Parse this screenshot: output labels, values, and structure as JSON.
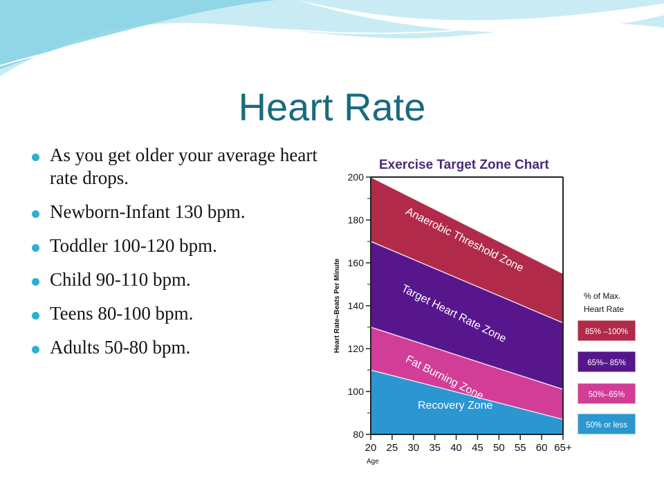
{
  "slide": {
    "title": "Heart Rate",
    "bullets": [
      "As you get older your average heart rate drops.",
      "Newborn-Infant 130 bpm.",
      "Toddler 100-120 bpm.",
      "Child 90-110 bpm.",
      "Teens 80-100 bpm.",
      "Adults 50-80 bpm."
    ],
    "colors": {
      "title": "#1a6a7e",
      "bullet": "#2bb0d0",
      "wave_light": "#c9ecf4",
      "wave_dark": "#7fcfe2"
    }
  },
  "chart_data": {
    "type": "area",
    "title": "Exercise Target Zone Chart",
    "xlabel": "Age",
    "ylabel": "Heart Rate–Beats Per Minute",
    "x": [
      20,
      65
    ],
    "x_tick_labels": [
      "20",
      "25",
      "30",
      "35",
      "40",
      "45",
      "50",
      "55",
      "60",
      "65+"
    ],
    "x_ticks": [
      20,
      25,
      30,
      35,
      40,
      45,
      50,
      55,
      60,
      65
    ],
    "y_ticks": [
      80,
      100,
      120,
      140,
      160,
      180,
      200
    ],
    "xlim": [
      20,
      65
    ],
    "ylim": [
      80,
      200
    ],
    "boundaries": [
      {
        "name": "Max",
        "values": [
          200,
          155
        ]
      },
      {
        "name": "85%",
        "values": [
          170,
          132
        ]
      },
      {
        "name": "65%",
        "values": [
          130,
          101
        ]
      },
      {
        "name": "50%",
        "values": [
          110,
          87
        ]
      }
    ],
    "series": [
      {
        "name": "Anaerobic Threshold Zone",
        "color": "#b12a4a",
        "upper": [
          200,
          155
        ],
        "lower": [
          170,
          132
        ]
      },
      {
        "name": "Target Heart Rate Zone",
        "color": "#57168c",
        "upper": [
          170,
          132
        ],
        "lower": [
          130,
          101
        ]
      },
      {
        "name": "Fat Burning Zone",
        "color": "#d13d97",
        "upper": [
          130,
          101
        ],
        "lower": [
          110,
          87
        ]
      },
      {
        "name": "Recovery Zone",
        "color": "#2c96d0",
        "upper": [
          110,
          87
        ],
        "lower": [
          80,
          80
        ]
      }
    ],
    "legend": {
      "title_line1": "% of Max.",
      "title_line2": "Heart Rate",
      "position": "right",
      "items": [
        {
          "label": "85% –100%",
          "color": "#b12a4a"
        },
        {
          "label": "65%– 85%",
          "color": "#57168c"
        },
        {
          "label": "50%–65%",
          "color": "#d13d97"
        },
        {
          "label": "50% or less",
          "color": "#2c96d0"
        }
      ]
    },
    "grid": false
  }
}
